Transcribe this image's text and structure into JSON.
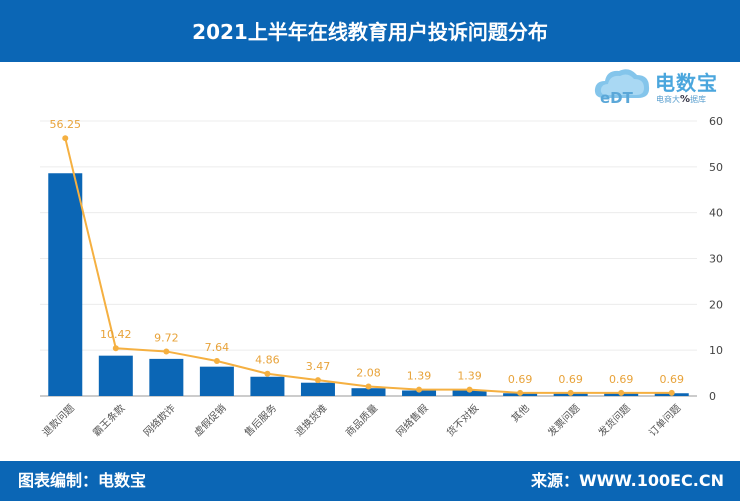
{
  "header": {
    "title": "2021上半年在线教育用户投诉问题分布"
  },
  "logo": {
    "brand": "电数宝",
    "tagline_pre": "电商大",
    "tagline_mid": "%",
    "tagline_post": "据库"
  },
  "footer": {
    "left": "图表编制：电数宝",
    "right": "来源：WWW.100EC.CN"
  },
  "colors": {
    "bar": "#0b66b5",
    "line": "#f5b041",
    "header": "#0b66b5"
  },
  "chart_data": {
    "type": "bar",
    "categories": [
      "退款问题",
      "霸王条款",
      "网络欺诈",
      "虚假促销",
      "售后服务",
      "退换货难",
      "商品质量",
      "网络售假",
      "货不对板",
      "其他",
      "发票问题",
      "发货问题",
      "订单问题"
    ],
    "series": [
      {
        "type": "bar",
        "values": [
          48.6,
          8.8,
          8.1,
          6.4,
          4.2,
          2.9,
          1.7,
          1.2,
          1.2,
          0.6,
          0.6,
          0.6,
          0.6
        ]
      },
      {
        "type": "line",
        "values": [
          56.25,
          10.42,
          9.72,
          7.64,
          4.86,
          3.47,
          2.08,
          1.39,
          1.39,
          0.69,
          0.69,
          0.69,
          0.69
        ],
        "labels": [
          "56.25",
          "10.42",
          "9.72",
          "7.64",
          "4.86",
          "3.47",
          "2.08",
          "1.39",
          "1.39",
          "0.69",
          "0.69",
          "0.69",
          "0.69"
        ]
      }
    ],
    "y_axis": {
      "position": "right",
      "ticks": [
        "0",
        "10",
        "20",
        "30",
        "40",
        "50",
        "60"
      ],
      "ylim": [
        0,
        60
      ]
    },
    "grid": true
  }
}
